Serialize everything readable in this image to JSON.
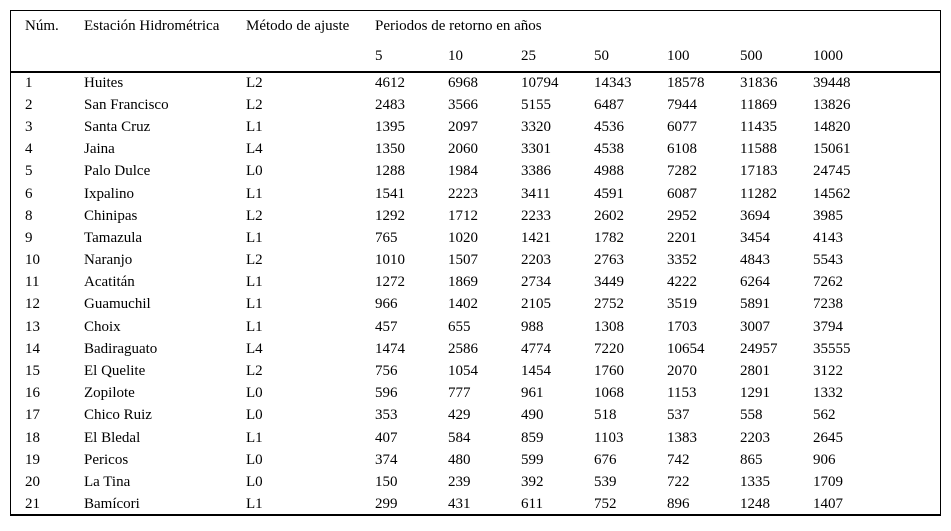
{
  "table": {
    "columns": {
      "num": "Núm.",
      "station": "Estación Hidrométrica",
      "method": "Método de ajuste",
      "periods_group": "Periodos de retorno en años",
      "periods": [
        "5",
        "10",
        "25",
        "50",
        "100",
        "500",
        "1000"
      ]
    },
    "rows": [
      {
        "num": "1",
        "station": "Huites",
        "method": "L2",
        "values": [
          "4612",
          "6968",
          "10794",
          "14343",
          "18578",
          "31836",
          "39448"
        ]
      },
      {
        "num": "2",
        "station": "San Francisco",
        "method": "L2",
        "values": [
          "2483",
          "3566",
          "5155",
          "6487",
          "7944",
          "11869",
          "13826"
        ]
      },
      {
        "num": "3",
        "station": "Santa Cruz",
        "method": "L1",
        "values": [
          "1395",
          "2097",
          "3320",
          "4536",
          "6077",
          "11435",
          "14820"
        ]
      },
      {
        "num": "4",
        "station": "Jaina",
        "method": "L4",
        "values": [
          "1350",
          "2060",
          "3301",
          "4538",
          "6108",
          "11588",
          "15061"
        ]
      },
      {
        "num": "5",
        "station": "Palo Dulce",
        "method": "L0",
        "values": [
          "1288",
          "1984",
          "3386",
          "4988",
          "7282",
          "17183",
          "24745"
        ]
      },
      {
        "num": "6",
        "station": "Ixpalino",
        "method": "L1",
        "values": [
          "1541",
          "2223",
          "3411",
          "4591",
          "6087",
          "11282",
          "14562"
        ]
      },
      {
        "num": "8",
        "station": "Chinipas",
        "method": "L2",
        "values": [
          "1292",
          "1712",
          "2233",
          "2602",
          "2952",
          "3694",
          "3985"
        ]
      },
      {
        "num": "9",
        "station": "Tamazula",
        "method": "L1",
        "values": [
          "765",
          "1020",
          "1421",
          "1782",
          "2201",
          "3454",
          "4143"
        ]
      },
      {
        "num": "10",
        "station": "Naranjo",
        "method": "L2",
        "values": [
          "1010",
          "1507",
          "2203",
          "2763",
          "3352",
          "4843",
          "5543"
        ]
      },
      {
        "num": "11",
        "station": "Acatitán",
        "method": "L1",
        "values": [
          "1272",
          "1869",
          "2734",
          "3449",
          "4222",
          "6264",
          "7262"
        ]
      },
      {
        "num": "12",
        "station": "Guamuchil",
        "method": "L1",
        "values": [
          "966",
          "1402",
          "2105",
          "2752",
          "3519",
          "5891",
          "7238"
        ]
      },
      {
        "num": "13",
        "station": "Choix",
        "method": "L1",
        "values": [
          "457",
          "655",
          "988",
          "1308",
          "1703",
          "3007",
          "3794"
        ]
      },
      {
        "num": "14",
        "station": "Badiraguato",
        "method": "L4",
        "values": [
          "1474",
          "2586",
          "4774",
          "7220",
          "10654",
          "24957",
          "35555"
        ]
      },
      {
        "num": "15",
        "station": "El Quelite",
        "method": "L2",
        "values": [
          "756",
          "1054",
          "1454",
          "1760",
          "2070",
          "2801",
          "3122"
        ]
      },
      {
        "num": "16",
        "station": "Zopilote",
        "method": "L0",
        "values": [
          "596",
          "777",
          "961",
          "1068",
          "1153",
          "1291",
          "1332"
        ]
      },
      {
        "num": "17",
        "station": "Chico Ruiz",
        "method": "L0",
        "values": [
          "353",
          "429",
          "490",
          "518",
          "537",
          "558",
          "562"
        ]
      },
      {
        "num": "18",
        "station": "El Bledal",
        "method": "L1",
        "values": [
          "407",
          "584",
          "859",
          "1103",
          "1383",
          "2203",
          "2645"
        ]
      },
      {
        "num": "19",
        "station": "Pericos",
        "method": "L0",
        "values": [
          "374",
          "480",
          "599",
          "676",
          "742",
          "865",
          "906"
        ]
      },
      {
        "num": "20",
        "station": "La Tina",
        "method": "L0",
        "values": [
          "150",
          "239",
          "392",
          "539",
          "722",
          "1335",
          "1709"
        ]
      },
      {
        "num": "21",
        "station": "Bamícori",
        "method": "L1",
        "values": [
          "299",
          "431",
          "611",
          "752",
          "896",
          "1248",
          "1407"
        ]
      }
    ]
  }
}
